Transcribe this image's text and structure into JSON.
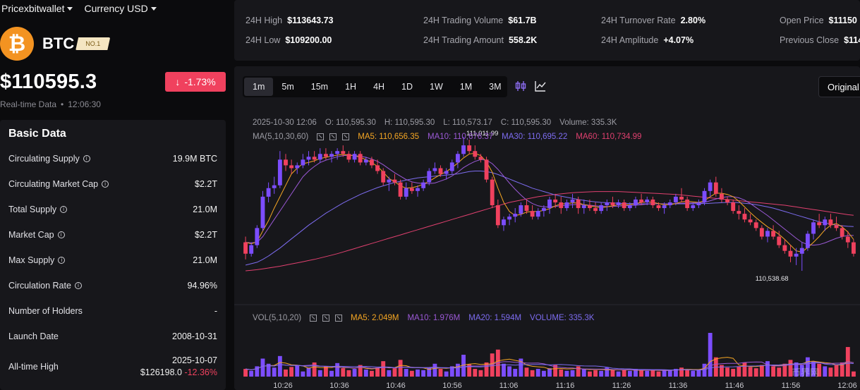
{
  "nav": {
    "brand": "Pricexbitwallet",
    "currency": "Currency USD"
  },
  "coin": {
    "symbol": "BTC",
    "logo_glyph": "₿",
    "rank": "NO.1",
    "price": "$110595.3",
    "change": "-1.73%",
    "arrow": "↓",
    "realtime_label": "Real-time Data",
    "dot": "•",
    "time": "12:06:30"
  },
  "colors": {
    "up": "#7c4dff",
    "down": "#f0415e",
    "ma5": "#f5a623",
    "ma10": "#9b59d6",
    "ma30": "#7d6cf0",
    "ma60": "#e0406f",
    "accent_btc": "#f39321"
  },
  "basic": {
    "title": "Basic Data",
    "rows": [
      {
        "k": "Circulating Supply",
        "v": "19.9M BTC"
      },
      {
        "k": "Circulating Market Cap",
        "v": "$2.2T"
      },
      {
        "k": "Total Supply",
        "v": "21.0M"
      },
      {
        "k": "Market Cap",
        "v": "$2.2T"
      },
      {
        "k": "Max Supply",
        "v": "21.0M"
      },
      {
        "k": "Circulation Rate",
        "v": "94.96%"
      },
      {
        "k": "Number of Holders",
        "v": "-"
      },
      {
        "k": "Launch Date",
        "v": "2008-10-31"
      }
    ],
    "ath_label": "All-time High",
    "ath_date": "2025-10-07",
    "ath_price": "$126198.0",
    "ath_change": "-12.36%"
  },
  "stats": {
    "high_k": "24H High",
    "high_v": "$113643.73",
    "low_k": "24H Low",
    "low_v": "$109200.00",
    "tvol_k": "24H Trading Volume",
    "tvol_v": "$61.7B",
    "tamt_k": "24H Trading Amount",
    "tamt_v": "558.2K",
    "turn_k": "24H Turnover Rate",
    "turn_v": "2.80%",
    "amp_k": "24H Amplitude",
    "amp_v": "+4.07%",
    "open_k": "Open Price",
    "open_v": "$11150",
    "prev_k": "Previous Close",
    "prev_v": "$114"
  },
  "timeframes": [
    "1m",
    "5m",
    "15m",
    "1H",
    "4H",
    "1D",
    "1W",
    "1M",
    "3M"
  ],
  "active_tf": "1m",
  "original_btn": "Original",
  "ohlc": {
    "date": "2025-10-30 12:06",
    "o": "O: 110,595.30",
    "h": "H: 110,595.30",
    "l": "L: 110,573.17",
    "c": "C: 110,595.30",
    "vol": "Volume: 335.3K"
  },
  "ma": {
    "label": "MA(5,10,30,60)",
    "ma5": "MA5: 110,656.35",
    "ma10": "MA10: 110,676.37",
    "ma30": "MA30: 110,695.22",
    "ma60": "MA60: 110,734.99"
  },
  "vol": {
    "label": "VOL(5,10,20)",
    "ma5": "MA5: 2.049M",
    "ma10": "MA10: 1.976M",
    "ma20": "MA20: 1.594M",
    "volume": "VOLUME: 335.3K"
  },
  "watermark": "币界网",
  "chart_data": {
    "type": "candlestick",
    "max_label": "111,011.99",
    "min_label": "110,538.68",
    "x_ticks": [
      "10:26",
      "10:36",
      "10:46",
      "10:56",
      "11:06",
      "11:16",
      "11:26",
      "11:36",
      "11:46",
      "11:56",
      "12:06"
    ],
    "candles": [
      [
        110640,
        110660,
        110580,
        110600
      ],
      [
        110600,
        110640,
        110590,
        110630
      ],
      [
        110630,
        110700,
        110620,
        110690
      ],
      [
        110690,
        110820,
        110680,
        110800
      ],
      [
        110800,
        110850,
        110780,
        110830
      ],
      [
        110830,
        110870,
        110810,
        110840
      ],
      [
        110840,
        110960,
        110830,
        110930
      ],
      [
        110930,
        110950,
        110890,
        110910
      ],
      [
        110910,
        110930,
        110880,
        110900
      ],
      [
        110900,
        110920,
        110880,
        110910
      ],
      [
        110910,
        110950,
        110900,
        110930
      ],
      [
        110930,
        110960,
        110910,
        110940
      ],
      [
        110940,
        110960,
        110920,
        110930
      ],
      [
        110930,
        110970,
        110920,
        110950
      ],
      [
        110950,
        110970,
        110930,
        110940
      ],
      [
        110940,
        110960,
        110920,
        110950
      ],
      [
        110950,
        110970,
        110930,
        110960
      ],
      [
        110960,
        110980,
        110940,
        110950
      ],
      [
        110950,
        110960,
        110920,
        110930
      ],
      [
        110930,
        110960,
        110920,
        110950
      ],
      [
        110950,
        110960,
        110910,
        110920
      ],
      [
        110920,
        110940,
        110910,
        110930
      ],
      [
        110930,
        110940,
        110900,
        110910
      ],
      [
        110910,
        110930,
        110880,
        110890
      ],
      [
        110890,
        110900,
        110840,
        110850
      ],
      [
        110850,
        110870,
        110820,
        110860
      ],
      [
        110860,
        110880,
        110840,
        110850
      ],
      [
        110850,
        110860,
        110790,
        110800
      ],
      [
        110800,
        110850,
        110790,
        110830
      ],
      [
        110830,
        110850,
        110810,
        110820
      ],
      [
        110820,
        110840,
        110800,
        110830
      ],
      [
        110830,
        110860,
        110820,
        110850
      ],
      [
        110850,
        110900,
        110840,
        110890
      ],
      [
        110890,
        110920,
        110880,
        110900
      ],
      [
        110900,
        110910,
        110870,
        110880
      ],
      [
        110880,
        110900,
        110860,
        110890
      ],
      [
        110890,
        110930,
        110880,
        110920
      ],
      [
        110920,
        110960,
        110900,
        110950
      ],
      [
        110950,
        111010,
        110940,
        110980
      ],
      [
        110980,
        111000,
        110950,
        110960
      ],
      [
        110960,
        110980,
        110930,
        110940
      ],
      [
        110940,
        110950,
        110920,
        110930
      ],
      [
        110930,
        110940,
        110850,
        110860
      ],
      [
        110860,
        110870,
        110760,
        110770
      ],
      [
        110770,
        110790,
        110690,
        110700
      ],
      [
        110700,
        110730,
        110680,
        110720
      ],
      [
        110720,
        110740,
        110700,
        110730
      ],
      [
        110730,
        110760,
        110710,
        110740
      ],
      [
        110740,
        110780,
        110730,
        110770
      ],
      [
        110770,
        110790,
        110740,
        110750
      ],
      [
        110750,
        110770,
        110720,
        110730
      ],
      [
        110730,
        110760,
        110720,
        110750
      ],
      [
        110750,
        110770,
        110730,
        110760
      ],
      [
        110760,
        110800,
        110740,
        110790
      ],
      [
        110790,
        110810,
        110760,
        110780
      ],
      [
        110780,
        110800,
        110740,
        110760
      ],
      [
        110760,
        110790,
        110750,
        110780
      ],
      [
        110780,
        110810,
        110760,
        110790
      ],
      [
        110790,
        110800,
        110740,
        110760
      ],
      [
        110760,
        110790,
        110740,
        110770
      ],
      [
        110770,
        110790,
        110750,
        110760
      ],
      [
        110760,
        110780,
        110740,
        110750
      ],
      [
        110750,
        110780,
        110740,
        110770
      ],
      [
        110770,
        110790,
        110750,
        110780
      ],
      [
        110780,
        110800,
        110760,
        110770
      ],
      [
        110770,
        110790,
        110760,
        110780
      ],
      [
        110780,
        110790,
        110750,
        110760
      ],
      [
        110760,
        110780,
        110750,
        110770
      ],
      [
        110770,
        110800,
        110760,
        110790
      ],
      [
        110790,
        110810,
        110770,
        110780
      ],
      [
        110780,
        110800,
        110770,
        110790
      ],
      [
        110790,
        110800,
        110760,
        110770
      ],
      [
        110770,
        110780,
        110750,
        110760
      ],
      [
        110760,
        110780,
        110740,
        110770
      ],
      [
        110770,
        110790,
        110760,
        110780
      ],
      [
        110780,
        110810,
        110770,
        110800
      ],
      [
        110800,
        110830,
        110780,
        110790
      ],
      [
        110790,
        110800,
        110750,
        110760
      ],
      [
        110760,
        110780,
        110750,
        110770
      ],
      [
        110770,
        110790,
        110760,
        110780
      ],
      [
        110780,
        110830,
        110770,
        110820
      ],
      [
        110820,
        110860,
        110800,
        110850
      ],
      [
        110850,
        110870,
        110800,
        110810
      ],
      [
        110810,
        110830,
        110780,
        110790
      ],
      [
        110790,
        110800,
        110770,
        110780
      ],
      [
        110780,
        110790,
        110740,
        110750
      ],
      [
        110750,
        110770,
        110720,
        110740
      ],
      [
        110740,
        110760,
        110710,
        110720
      ],
      [
        110720,
        110740,
        110700,
        110710
      ],
      [
        110710,
        110720,
        110680,
        110690
      ],
      [
        110690,
        110700,
        110650,
        110660
      ],
      [
        110660,
        110690,
        110640,
        110680
      ],
      [
        110680,
        110700,
        110650,
        110660
      ],
      [
        110660,
        110680,
        110620,
        110630
      ],
      [
        110630,
        110650,
        110600,
        110610
      ],
      [
        110610,
        110630,
        110570,
        110590
      ],
      [
        110590,
        110620,
        110560,
        110600
      ],
      [
        110600,
        110640,
        110540,
        110620
      ],
      [
        110620,
        110680,
        110610,
        110670
      ],
      [
        110670,
        110720,
        110650,
        110710
      ],
      [
        110710,
        110740,
        110690,
        110700
      ],
      [
        110700,
        110730,
        110680,
        110720
      ],
      [
        110720,
        110740,
        110690,
        110700
      ],
      [
        110700,
        110730,
        110680,
        110690
      ],
      [
        110690,
        110700,
        110650,
        110660
      ],
      [
        110660,
        110680,
        110620,
        110640
      ],
      [
        110640,
        110650,
        110590,
        110600
      ]
    ],
    "ma5": [
      110640,
      110635,
      110642,
      110680,
      110716,
      110760,
      110800,
      110840,
      110880,
      110900,
      110916,
      110920,
      110926,
      110934,
      110938,
      110942,
      110946,
      110948,
      110946,
      110944,
      110938,
      110930,
      110920,
      110906,
      110886,
      110864,
      110852,
      110838,
      110830,
      110832,
      110836,
      110844,
      110854,
      110866,
      110878,
      110888,
      110902,
      110918,
      110936,
      110950,
      110952,
      110944,
      110922,
      110886,
      110830,
      110780,
      110748,
      110734,
      110738,
      110746,
      110748,
      110748,
      110752,
      110758,
      110768,
      110774,
      110776,
      110778,
      110778,
      110772,
      110768,
      110764,
      110762,
      110764,
      110768,
      110772,
      110772,
      110772,
      110776,
      110780,
      110782,
      110780,
      110776,
      110772,
      110772,
      110776,
      110782,
      110784,
      110782,
      110780,
      110786,
      110800,
      110812,
      110812,
      110808,
      110800,
      110784,
      110764,
      110744,
      110726,
      110710,
      110694,
      110682,
      110668,
      110650,
      110630,
      110610,
      110606,
      110622,
      110640,
      110660,
      110684,
      110700,
      110706,
      110694,
      110676,
      110650
    ],
    "ma10": [
      110640,
      110638,
      110640,
      110660,
      110690,
      110720,
      110750,
      110780,
      110810,
      110840,
      110870,
      110890,
      110906,
      110920,
      110928,
      110934,
      110940,
      110944,
      110946,
      110944,
      110942,
      110938,
      110932,
      110924,
      110912,
      110898,
      110884,
      110872,
      110860,
      110852,
      110848,
      110846,
      110846,
      110848,
      110855,
      110862,
      110873,
      110886,
      110902,
      110914,
      110924,
      110930,
      110928,
      110916,
      110896,
      110872,
      110848,
      110826,
      110806,
      110788,
      110776,
      110768,
      110764,
      110764,
      110766,
      110768,
      110770,
      110772,
      110773,
      110772,
      110770,
      110768,
      110766,
      110765,
      110766,
      110767,
      110768,
      110769,
      110770,
      110772,
      110774,
      110775,
      110775,
      110775,
      110775,
      110776,
      110777,
      110778,
      110778,
      110778,
      110780,
      110786,
      110792,
      110797,
      110800,
      110800,
      110796,
      110788,
      110776,
      110762,
      110748,
      110734,
      110718,
      110702,
      110686,
      110670,
      110654,
      110640,
      110632,
      110630,
      110632,
      110638,
      110646,
      110654,
      110660,
      110664,
      110664
    ],
    "ma30": [
      110560,
      110565,
      110570,
      110580,
      110592,
      110606,
      110620,
      110636,
      110652,
      110668,
      110684,
      110700,
      110714,
      110728,
      110742,
      110754,
      110766,
      110778,
      110788,
      110798,
      110808,
      110816,
      110824,
      110832,
      110838,
      110844,
      110850,
      110854,
      110858,
      110862,
      110866,
      110868,
      110870,
      110872,
      110874,
      110876,
      110878,
      110880,
      110884,
      110888,
      110890,
      110890,
      110888,
      110884,
      110878,
      110870,
      110862,
      110854,
      110846,
      110838,
      110830,
      110824,
      110818,
      110812,
      110806,
      110802,
      110798,
      110794,
      110790,
      110787,
      110784,
      110782,
      110780,
      110779,
      110778,
      110777,
      110776,
      110776,
      110775,
      110775,
      110775,
      110775,
      110775,
      110775,
      110775,
      110775,
      110775,
      110775,
      110775,
      110776,
      110776,
      110777,
      110778,
      110779,
      110780,
      110780,
      110779,
      110777,
      110775,
      110772,
      110768,
      110764,
      110760,
      110754,
      110748,
      110742,
      110736,
      110730,
      110724,
      110718,
      110712,
      110708,
      110704,
      110700,
      110698,
      110696,
      110695
    ],
    "ma60": [
      110540,
      110542,
      110544,
      110547,
      110550,
      110553,
      110556,
      110560,
      110564,
      110568,
      110572,
      110576,
      110580,
      110585,
      110590,
      110595,
      110600,
      110606,
      110612,
      110618,
      110624,
      110630,
      110636,
      110642,
      110648,
      110654,
      110660,
      110666,
      110672,
      110678,
      110684,
      110690,
      110696,
      110702,
      110708,
      110714,
      110720,
      110726,
      110732,
      110738,
      110744,
      110750,
      110756,
      110762,
      110768,
      110774,
      110780,
      110784,
      110788,
      110792,
      110796,
      110800,
      110803,
      110806,
      110808,
      110810,
      110812,
      110814,
      110815,
      110816,
      110817,
      110818,
      110818,
      110818,
      110818,
      110818,
      110817,
      110816,
      110815,
      110814,
      110813,
      110812,
      110811,
      110810,
      110809,
      110808,
      110806,
      110804,
      110802,
      110800,
      110798,
      110796,
      110794,
      110792,
      110790,
      110788,
      110786,
      110784,
      110782,
      110780,
      110778,
      110776,
      110774,
      110772,
      110770,
      110767,
      110764,
      110761,
      110758,
      110755,
      110752,
      110749,
      110746,
      110743,
      110740,
      110737,
      110735
    ],
    "volume": [
      1.2,
      0.9,
      1.6,
      2.8,
      2.0,
      1.4,
      3.2,
      1.1,
      1.5,
      1.7,
      0.8,
      1.4,
      2.2,
      1.0,
      1.6,
      0.9,
      2.1,
      1.3,
      1.0,
      1.2,
      1.8,
      1.1,
      0.9,
      1.4,
      2.4,
      1.0,
      1.3,
      2.6,
      1.2,
      0.9,
      1.1,
      1.0,
      1.4,
      2.0,
      1.2,
      0.8,
      1.6,
      2.0,
      3.4,
      1.9,
      1.2,
      1.0,
      2.2,
      3.6,
      4.2,
      2.0,
      1.6,
      1.2,
      2.8,
      1.4,
      1.0,
      1.2,
      0.9,
      1.3,
      1.8,
      1.1,
      0.9,
      1.0,
      1.6,
      1.2,
      0.8,
      1.0,
      0.9,
      1.4,
      1.1,
      0.8,
      1.0,
      0.9,
      1.2,
      1.0,
      0.9,
      1.0,
      0.8,
      1.1,
      1.0,
      1.2,
      1.4,
      1.0,
      0.9,
      1.0,
      2.0,
      6.8,
      3.0,
      1.8,
      1.4,
      1.2,
      1.6,
      2.2,
      1.5,
      1.3,
      1.8,
      2.4,
      1.6,
      1.4,
      2.0,
      2.6,
      2.2,
      1.8,
      3.0,
      2.4,
      2.0,
      1.6,
      1.4,
      1.8,
      2.2,
      4.6,
      0.8
    ]
  }
}
